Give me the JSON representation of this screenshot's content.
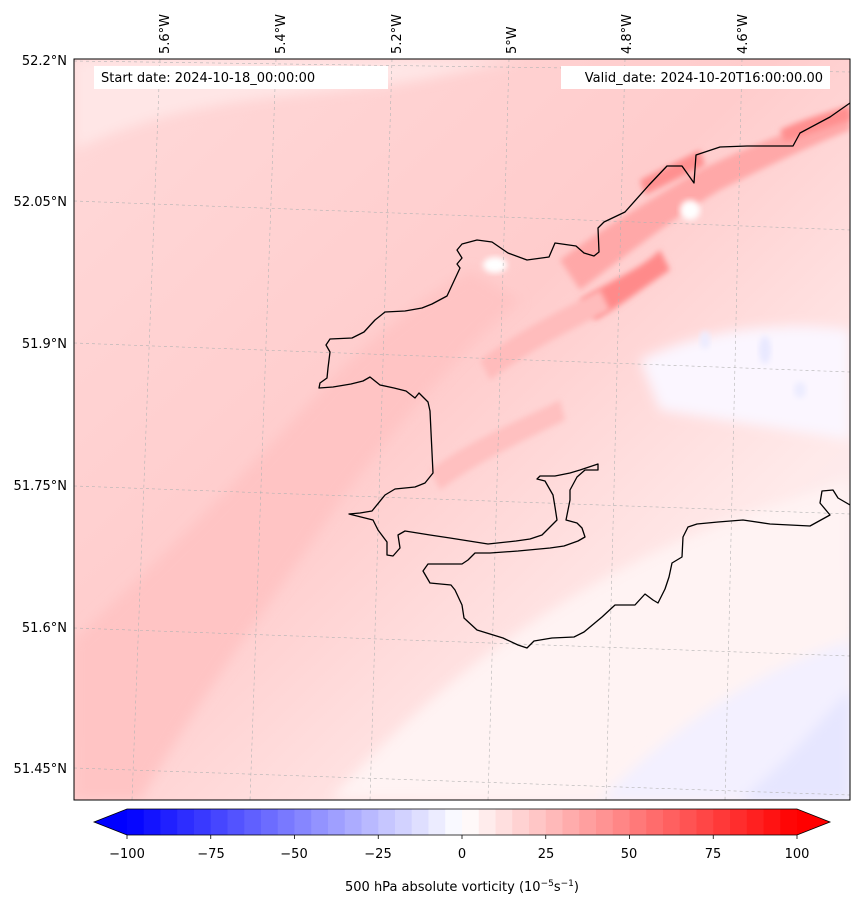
{
  "map": {
    "annotation_left": "Start date: 2024-10-18_00:00:00",
    "annotation_right": "Valid_date: 2024-10-20T16:00:00.00",
    "lon_labels": [
      "5.6°W",
      "5.4°W",
      "5.2°W",
      "5°W",
      "4.8°W",
      "4.6°W"
    ],
    "lat_labels": [
      "52.2°N",
      "52.05°N",
      "51.9°N",
      "51.75°N",
      "51.6°N",
      "51.45°N"
    ],
    "gridlines": true,
    "coastline_color": "#000000",
    "field": "500 hPa absolute vorticity"
  },
  "colorbar": {
    "ticks": [
      "−100",
      "−75",
      "−50",
      "−25",
      "0",
      "25",
      "50",
      "75",
      "100"
    ],
    "label": "500 hPa absolute vorticity (10",
    "label_exp1": "−5",
    "label_mid": "s",
    "label_exp2": "−1",
    "label_end": ")",
    "vmin": -100,
    "vmax": 100,
    "colormap": "bwr",
    "extend": "both",
    "low_color": "#0000ff",
    "mid_color": "#ffffff",
    "high_color": "#ff0000"
  }
}
